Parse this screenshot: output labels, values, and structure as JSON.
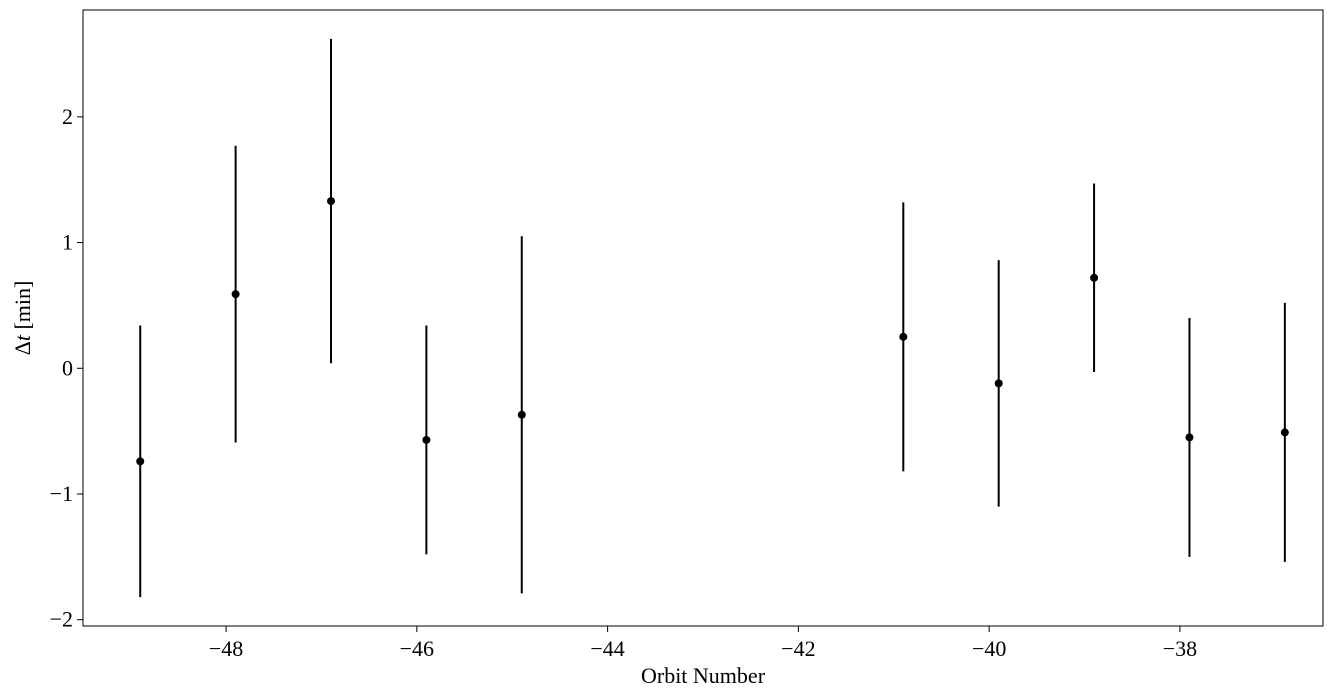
{
  "chart_data": {
    "type": "scatter",
    "xlabel": "Orbit Number",
    "ylabel_symbol": "Δ",
    "ylabel_var": "t",
    "ylabel_unit": " [min]",
    "xlim": [
      -49.5,
      -36.5
    ],
    "ylim": [
      -2.05,
      2.85
    ],
    "xticks": [
      -48,
      -46,
      -44,
      -42,
      -40,
      -38
    ],
    "xtick_labels": [
      "−48",
      "−46",
      "−44",
      "−42",
      "−40",
      "−38"
    ],
    "yticks": [
      -2,
      -1,
      0,
      1,
      2
    ],
    "ytick_labels": [
      "−2",
      "−1",
      "0",
      "1",
      "2"
    ],
    "grid": false,
    "marker_color": "#000000",
    "points": [
      {
        "x": -48.9,
        "y": -0.74,
        "yerr": 1.08
      },
      {
        "x": -47.9,
        "y": 0.59,
        "yerr": 1.18
      },
      {
        "x": -46.9,
        "y": 1.33,
        "yerr": 1.29
      },
      {
        "x": -45.9,
        "y": -0.57,
        "yerr": 0.91
      },
      {
        "x": -44.9,
        "y": -0.37,
        "yerr": 1.42
      },
      {
        "x": -40.9,
        "y": 0.25,
        "yerr": 1.07
      },
      {
        "x": -39.9,
        "y": -0.12,
        "yerr": 0.98
      },
      {
        "x": -38.9,
        "y": 0.72,
        "yerr": 0.75
      },
      {
        "x": -37.9,
        "y": -0.55,
        "yerr": 0.95
      },
      {
        "x": -36.9,
        "y": -0.51,
        "yerr": 1.03
      }
    ]
  }
}
